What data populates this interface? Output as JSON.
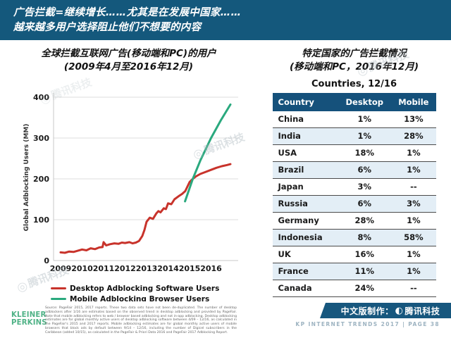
{
  "banner": {
    "line1": "广告拦截=继续增长……尤其是在发展中国家……",
    "line2": "越来越多用户选择阻止他们不想要的内容"
  },
  "colors": {
    "banner_bg": "#14587C",
    "table_header_bg": "#15517B",
    "table_row_alt": "#E3EEF6",
    "desktop_line_red": "#C8332B",
    "mobile_line_green": "#2AA97E",
    "kp_logo_green": "#4FB286",
    "credit_box_blue": "#17577E"
  },
  "chart_data": [
    {
      "type": "line",
      "title": "全球拦截互联网广告(移动端和PC)的用户",
      "subtitle": "(2009年4月至2016年12月)",
      "xlabel": "",
      "ylabel": "Global Adblocking Users (MM)",
      "xlim": [
        2009,
        2017
      ],
      "ylim": [
        0,
        400
      ],
      "xticks": [
        2009,
        2010,
        2011,
        2012,
        2013,
        2014,
        2015,
        2016
      ],
      "yticks": [
        0,
        100,
        200,
        300,
        400
      ],
      "grid": true,
      "legend_position": "bottom",
      "series": [
        {
          "name": "Desktop Adblocking Software Users",
          "color": "#C8332B",
          "points": [
            [
              2009.0,
              20
            ],
            [
              2009.2,
              19
            ],
            [
              2009.4,
              22
            ],
            [
              2009.6,
              21
            ],
            [
              2009.8,
              24
            ],
            [
              2010.0,
              27
            ],
            [
              2010.2,
              25
            ],
            [
              2010.4,
              30
            ],
            [
              2010.6,
              28
            ],
            [
              2010.8,
              32
            ],
            [
              2010.95,
              33
            ],
            [
              2011.0,
              45
            ],
            [
              2011.12,
              37
            ],
            [
              2011.3,
              40
            ],
            [
              2011.5,
              42
            ],
            [
              2011.7,
              41
            ],
            [
              2011.85,
              44
            ],
            [
              2012.0,
              43
            ],
            [
              2012.2,
              45
            ],
            [
              2012.35,
              42
            ],
            [
              2012.5,
              44
            ],
            [
              2012.65,
              48
            ],
            [
              2012.8,
              60
            ],
            [
              2012.9,
              75
            ],
            [
              2013.0,
              95
            ],
            [
              2013.15,
              105
            ],
            [
              2013.3,
              102
            ],
            [
              2013.45,
              115
            ],
            [
              2013.55,
              121
            ],
            [
              2013.65,
              118
            ],
            [
              2013.8,
              128
            ],
            [
              2013.9,
              126
            ],
            [
              2014.0,
              140
            ],
            [
              2014.15,
              138
            ],
            [
              2014.3,
              150
            ],
            [
              2014.5,
              158
            ],
            [
              2014.65,
              163
            ],
            [
              2014.8,
              170
            ],
            [
              2015.0,
              192
            ],
            [
              2015.15,
              200
            ],
            [
              2015.3,
              206
            ],
            [
              2015.5,
              212
            ],
            [
              2015.75,
              217
            ],
            [
              2016.0,
              222
            ],
            [
              2016.25,
              227
            ],
            [
              2016.5,
              231
            ],
            [
              2016.75,
              234
            ],
            [
              2016.9,
              236
            ]
          ]
        },
        {
          "name": "Mobile Adblocking Browser Users",
          "color": "#2AA97E",
          "points": [
            [
              2014.79,
              145
            ],
            [
              2015.15,
              200
            ],
            [
              2015.5,
              245
            ],
            [
              2016.0,
              300
            ],
            [
              2016.45,
              343
            ],
            [
              2016.9,
              382
            ]
          ]
        }
      ]
    },
    {
      "type": "table",
      "title": "Countries, 12/16",
      "panel_title": "特定国家的广告拦截情况",
      "panel_subtitle": "(移动端和PC，2016年12月)",
      "columns": [
        "Country",
        "Desktop",
        "Mobile"
      ],
      "rows": [
        [
          "China",
          "1%",
          "13%"
        ],
        [
          "India",
          "1%",
          "28%"
        ],
        [
          "USA",
          "18%",
          "1%"
        ],
        [
          "Brazil",
          "6%",
          "1%"
        ],
        [
          "Japan",
          "3%",
          "--"
        ],
        [
          "Russia",
          "6%",
          "3%"
        ],
        [
          "Germany",
          "28%",
          "1%"
        ],
        [
          "Indonesia",
          "8%",
          "58%"
        ],
        [
          "UK",
          "16%",
          "1%"
        ],
        [
          "France",
          "11%",
          "1%"
        ],
        [
          "Canada",
          "24%",
          "--"
        ]
      ]
    }
  ],
  "footer": {
    "kp_line1": "KLEINER",
    "kp_line2": "PERKINS",
    "source": "Source: PageFair 2015, 2017 reports. These two data sets have not been de-duplicated. The number of desktop adblockers after 1/16 are estimates based on the observed trend in desktop adblocking and provided by PageFair. Note that mobile adblocking refers to web / browser based adblocking and not in-app adblocking. Desktop adblocking estimates are for global monthly active users of desktop adblocking software between 4/09 – 12/16, as calculated in the PageFair's 2015 and 2017 reports. Mobile adblocking estimates are for global monthly active users of mobile browsers that block ads by default between 9/14 – 12/16, including the number of Digicel subscribers in the Caribbean (added 10/15), as calculated in the PageFair & Priori Data 2016 and PageFair 2017 Adblocking Report.",
    "credit_prefix": "中文版制作：",
    "credit_brand": "腾讯科技",
    "report_line": "KP INTERNET TRENDS 2017  |  PAGE 38"
  },
  "watermark": {
    "text": "腾讯科技",
    "circle": "◎"
  }
}
